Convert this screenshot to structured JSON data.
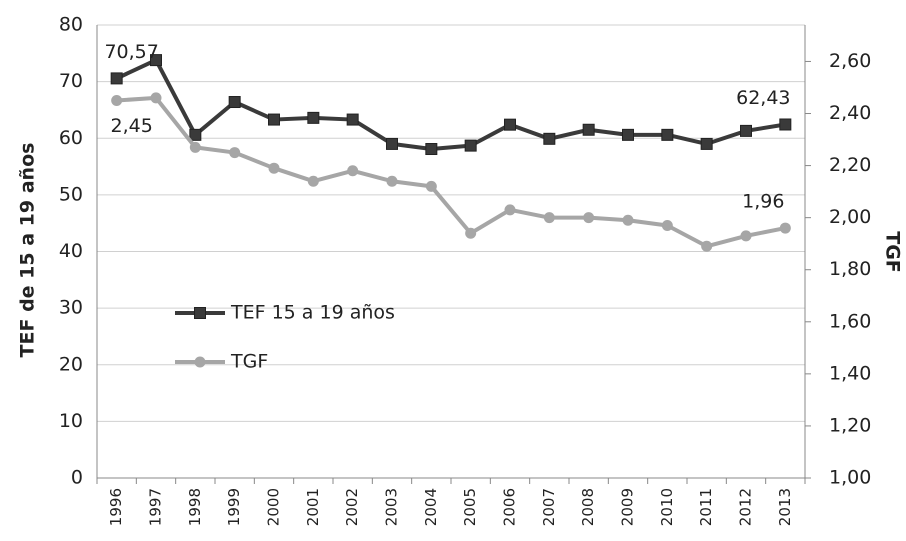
{
  "chart_data": {
    "type": "line",
    "y_label": "TEF de 15 a 19 años",
    "y2_label": "TGF",
    "categories": [
      "1996",
      "1997",
      "1998",
      "1999",
      "2000",
      "2001",
      "2002",
      "2003",
      "2004",
      "2005",
      "2006",
      "2007",
      "2008",
      "2009",
      "2010",
      "2011",
      "2012",
      "2013"
    ],
    "series": [
      {
        "name": "TEF 15 a 19 años",
        "color": "#3a3a3a",
        "marker": "square",
        "values": [
          70.57,
          73.8,
          60.6,
          66.4,
          63.3,
          63.6,
          63.3,
          59.0,
          58.1,
          58.7,
          62.4,
          59.9,
          61.5,
          60.6,
          60.6,
          59.0,
          61.3,
          62.43
        ],
        "value_labels": [
          "70,57",
          null,
          null,
          null,
          null,
          null,
          null,
          null,
          null,
          null,
          null,
          null,
          null,
          null,
          null,
          null,
          null,
          "62,43"
        ]
      },
      {
        "name": "TGF",
        "color": "#a6a6a6",
        "marker": "circle",
        "axis": "y2",
        "values": [
          2.45,
          2.46,
          2.27,
          2.25,
          2.19,
          2.14,
          2.18,
          2.14,
          2.12,
          1.94,
          2.03,
          2.0,
          2.0,
          1.99,
          1.97,
          1.89,
          1.93,
          1.96
        ],
        "value_labels": [
          "2,45",
          null,
          null,
          null,
          null,
          null,
          null,
          null,
          null,
          null,
          null,
          null,
          null,
          null,
          null,
          null,
          null,
          "1,96"
        ]
      }
    ],
    "ylim": [
      0,
      80
    ],
    "yticks": [
      0,
      10,
      20,
      30,
      40,
      50,
      60,
      70,
      80
    ],
    "y2lim": [
      1,
      2.74
    ],
    "y2ticks": [
      {
        "value": 1,
        "label": "1,00"
      },
      {
        "value": 1.2,
        "label": "1,20"
      },
      {
        "value": 1.4,
        "label": "1,40"
      },
      {
        "value": 1.6,
        "label": "1,60"
      },
      {
        "value": 1.8,
        "label": "1,80"
      },
      {
        "value": 2,
        "label": "2,00"
      },
      {
        "value": 2.2,
        "label": "2,20"
      },
      {
        "value": 2.4,
        "label": "2,40"
      },
      {
        "value": 2.6,
        "label": "2,60"
      }
    ],
    "grid": true
  }
}
